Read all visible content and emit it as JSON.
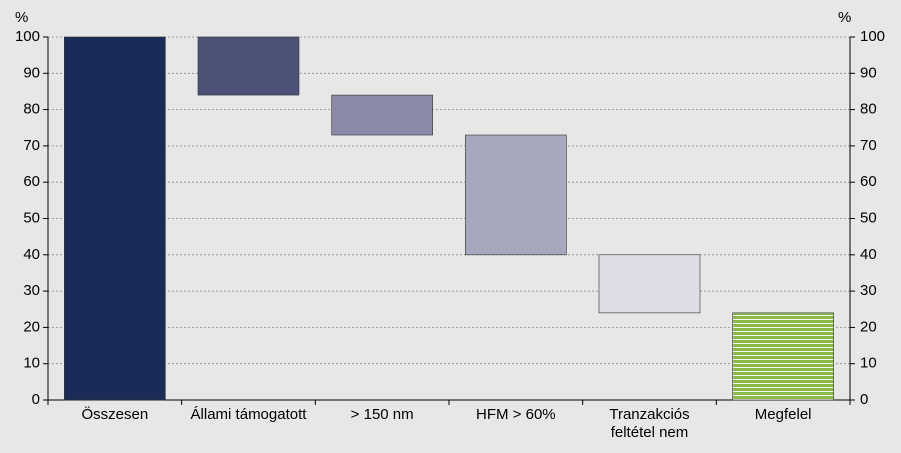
{
  "chart_data": {
    "type": "waterfall",
    "y_unit": "%",
    "y2_unit": "%",
    "categories": [
      "Összesen",
      "Állami támogatott",
      "> 150 nm",
      "HFM > 60%",
      "Tranzakciós feltétel nem",
      "Megfelel"
    ],
    "values": [
      100,
      -16,
      -11,
      -33,
      -16,
      24
    ],
    "totals": [
      true,
      false,
      false,
      false,
      false,
      true
    ],
    "colors": [
      "#1b2b57",
      "#4b5275",
      "#8b8aa6",
      "#a7a8bd",
      "#dcdde6",
      "striped-green"
    ],
    "ylim": [
      0,
      100
    ],
    "yticks": [
      0,
      10,
      20,
      30,
      40,
      50,
      60,
      70,
      80,
      90,
      100
    ],
    "y2lim": [
      0,
      100
    ],
    "y2ticks": [
      0,
      10,
      20,
      30,
      40,
      50,
      60,
      70,
      80,
      90,
      100
    ],
    "grid": true
  }
}
